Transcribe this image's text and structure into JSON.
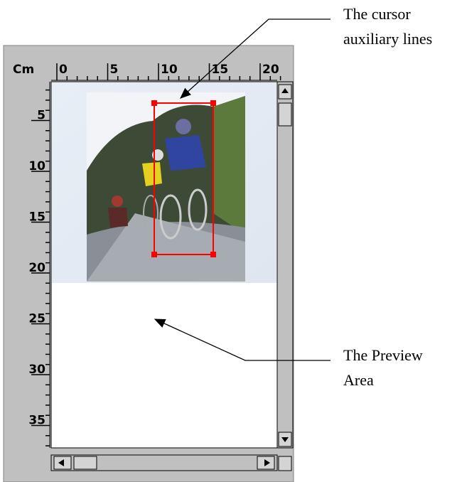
{
  "ruler": {
    "unit": "Cm",
    "horizontal": [
      "0",
      "5",
      "10",
      "15",
      "20"
    ],
    "vertical": [
      "5",
      "10",
      "15",
      "20",
      "25",
      "30",
      "35"
    ]
  },
  "annotations": {
    "cursor_lines": [
      "The cursor",
      "auxiliary lines"
    ],
    "preview_area": [
      "The Preview",
      "Area"
    ]
  }
}
